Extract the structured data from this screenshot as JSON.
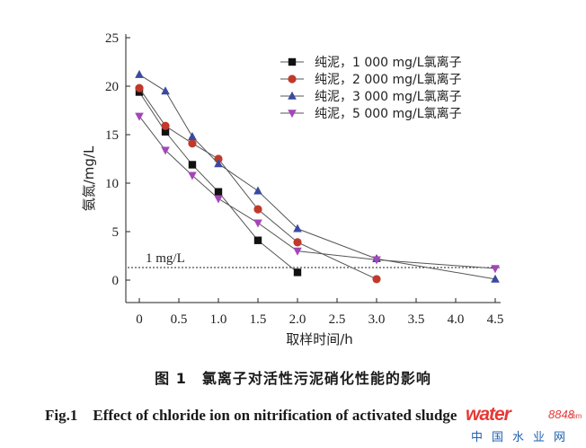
{
  "chart_data": {
    "type": "line",
    "xlabel": "取样时间/h",
    "ylabel": "氨氮/mg/L",
    "xlim": [
      0,
      4.5
    ],
    "ylim": [
      0,
      25
    ],
    "x_ticks": [
      "0",
      "0.5",
      "1.0",
      "1.5",
      "2.0",
      "2.5",
      "3.0",
      "3.5",
      "4.0",
      "4.5"
    ],
    "y_ticks": [
      "0",
      "5",
      "10",
      "15",
      "20",
      "25"
    ],
    "legend_position": "top-right",
    "reference_line": {
      "y": 1.3,
      "label": "1 mg/L",
      "style": "dotted"
    },
    "series": [
      {
        "name": "纯泥，1 000 mg/L氯离子",
        "color": "#111111",
        "marker": "square",
        "x": [
          0,
          0.33,
          0.67,
          1.0,
          1.5,
          2.0
        ],
        "y": [
          19.4,
          15.3,
          11.9,
          9.1,
          4.1,
          0.8
        ]
      },
      {
        "name": "纯泥，2 000 mg/L氯离子",
        "color": "#c0392b",
        "marker": "circle",
        "x": [
          0,
          0.33,
          0.67,
          1.0,
          1.5,
          2.0,
          3.0
        ],
        "y": [
          19.8,
          15.9,
          14.1,
          12.5,
          7.3,
          3.9,
          0.1
        ]
      },
      {
        "name": "纯泥，3 000 mg/L氯离子",
        "color": "#3b4aa0",
        "marker": "triangle-up",
        "x": [
          0,
          0.33,
          0.67,
          1.0,
          1.5,
          2.0,
          3.0,
          4.5
        ],
        "y": [
          21.2,
          19.5,
          14.8,
          12.0,
          9.2,
          5.3,
          2.2,
          0.1
        ]
      },
      {
        "name": "纯泥，5 000 mg/L氯离子",
        "color": "#a347b8",
        "marker": "triangle-down",
        "x": [
          0,
          0.33,
          0.67,
          1.0,
          1.5,
          2.0,
          3.0,
          4.5
        ],
        "y": [
          16.9,
          13.4,
          10.8,
          8.4,
          5.9,
          3.0,
          2.1,
          1.2
        ]
      }
    ]
  },
  "caption": {
    "cn": "图 1　氯离子对活性污泥硝化性能的影响",
    "en": "Fig.1　Effect of chloride ion on nitrification of activated sludge"
  },
  "watermark": {
    "main": "water",
    "num": "8848",
    "com": ".com",
    "sub": "中国水业网",
    "color_main": "#e53935",
    "color_sub": "#1e5fb0"
  }
}
